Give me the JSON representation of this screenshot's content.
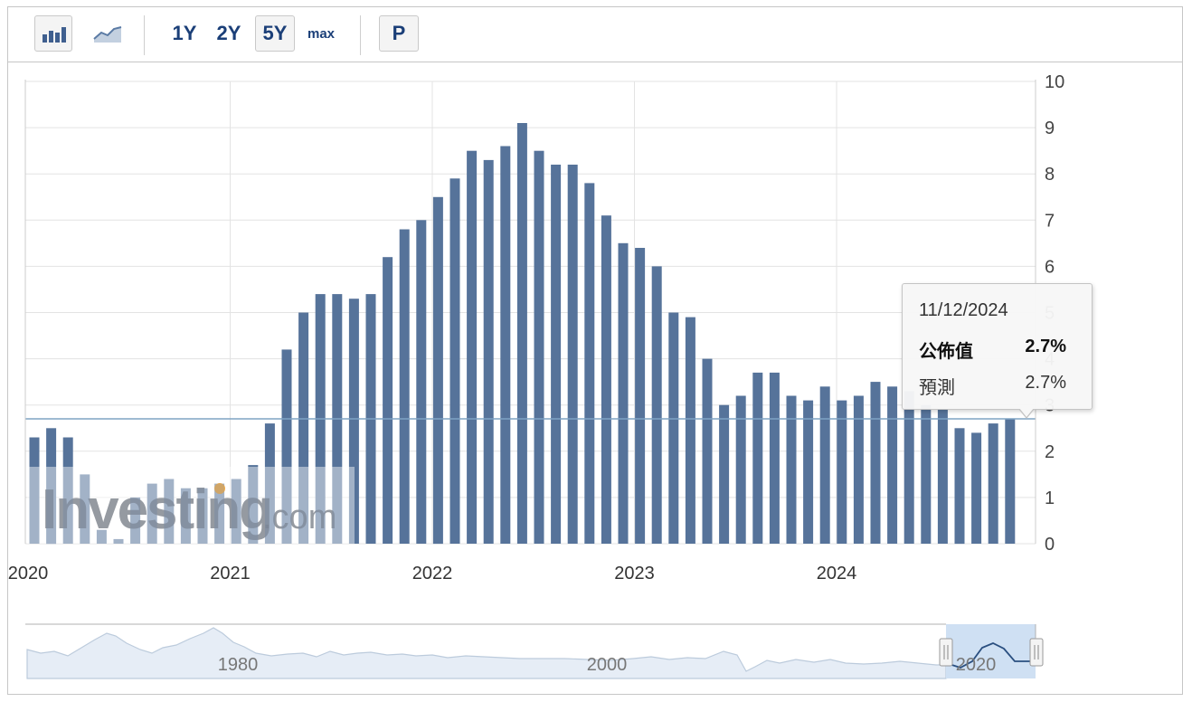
{
  "toolbar": {
    "bar_chart_icon": "bar-chart-icon",
    "line_chart_icon": "line-chart-icon",
    "ranges": [
      "1Y",
      "2Y",
      "5Y",
      "max"
    ],
    "active_range": "5Y",
    "p_label": "P"
  },
  "tooltip": {
    "date": "11/12/2024",
    "actual_label": "公佈值",
    "actual_value": "2.7%",
    "forecast_label": "預測",
    "forecast_value": "2.7%"
  },
  "watermark": {
    "brand": "Investing",
    "suffix": ".com"
  },
  "navigator": {
    "labels": [
      "1980",
      "2000",
      "2020"
    ]
  },
  "chart_data": {
    "type": "bar",
    "x_tick_labels": [
      "2020",
      "2021",
      "2022",
      "2023",
      "2024"
    ],
    "y_tick_labels": [
      "0",
      "1",
      "2",
      "3",
      "4",
      "5",
      "6",
      "7",
      "8",
      "9",
      "10"
    ],
    "ylim": [
      0,
      10
    ],
    "y_axis_position": "right",
    "grid": true,
    "reference_line": 2.7,
    "colors": {
      "bar": "#56739a",
      "grid": "#e3e3e3",
      "reference_line": "#7fa3c4"
    },
    "x": [
      "2020-01",
      "2020-02",
      "2020-03",
      "2020-04",
      "2020-05",
      "2020-06",
      "2020-07",
      "2020-08",
      "2020-09",
      "2020-10",
      "2020-11",
      "2020-12",
      "2021-01",
      "2021-02",
      "2021-03",
      "2021-04",
      "2021-05",
      "2021-06",
      "2021-07",
      "2021-08",
      "2021-09",
      "2021-10",
      "2021-11",
      "2021-12",
      "2022-01",
      "2022-02",
      "2022-03",
      "2022-04",
      "2022-05",
      "2022-06",
      "2022-07",
      "2022-08",
      "2022-09",
      "2022-10",
      "2022-11",
      "2022-12",
      "2023-01",
      "2023-02",
      "2023-03",
      "2023-04",
      "2023-05",
      "2023-06",
      "2023-07",
      "2023-08",
      "2023-09",
      "2023-10",
      "2023-11",
      "2023-12",
      "2024-01",
      "2024-02",
      "2024-03",
      "2024-04",
      "2024-05",
      "2024-06",
      "2024-07",
      "2024-08",
      "2024-09",
      "2024-10",
      "2024-11"
    ],
    "values": [
      2.3,
      2.5,
      2.3,
      1.5,
      0.3,
      0.1,
      1.0,
      1.3,
      1.4,
      1.2,
      1.2,
      1.3,
      1.4,
      1.7,
      2.6,
      4.2,
      5.0,
      5.4,
      5.4,
      5.3,
      5.4,
      6.2,
      6.8,
      7.0,
      7.5,
      7.9,
      8.5,
      8.3,
      8.6,
      9.1,
      8.5,
      8.2,
      8.2,
      7.8,
      7.1,
      6.5,
      6.4,
      6.0,
      5.0,
      4.9,
      4.0,
      3.0,
      3.2,
      3.7,
      3.7,
      3.2,
      3.1,
      3.4,
      3.1,
      3.2,
      3.5,
      3.4,
      3.3,
      3.0,
      2.9,
      2.5,
      2.4,
      2.6,
      2.7
    ]
  }
}
